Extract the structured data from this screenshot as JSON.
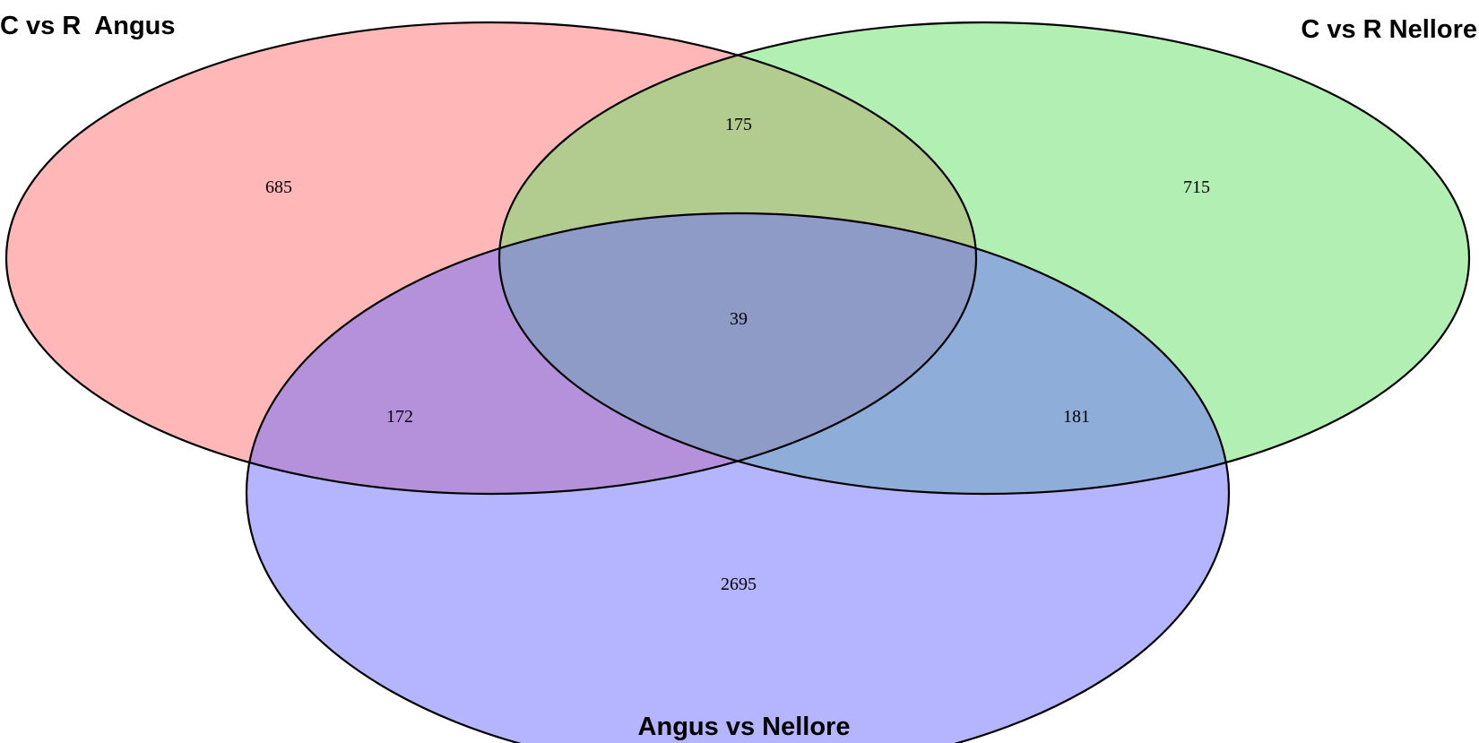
{
  "venn": {
    "sets": [
      {
        "id": "a",
        "label": "C vs R  Angus",
        "color": "#ff6f6f"
      },
      {
        "id": "b",
        "label": "C vs R Nellore",
        "color": "#66e066"
      },
      {
        "id": "c",
        "label": "Angus vs Nellore",
        "color": "#6b6bff"
      }
    ],
    "counts": {
      "a_only": "685",
      "b_only": "715",
      "c_only": "2695",
      "ab": "175",
      "ac": "172",
      "bc": "181",
      "abc": "39"
    }
  }
}
